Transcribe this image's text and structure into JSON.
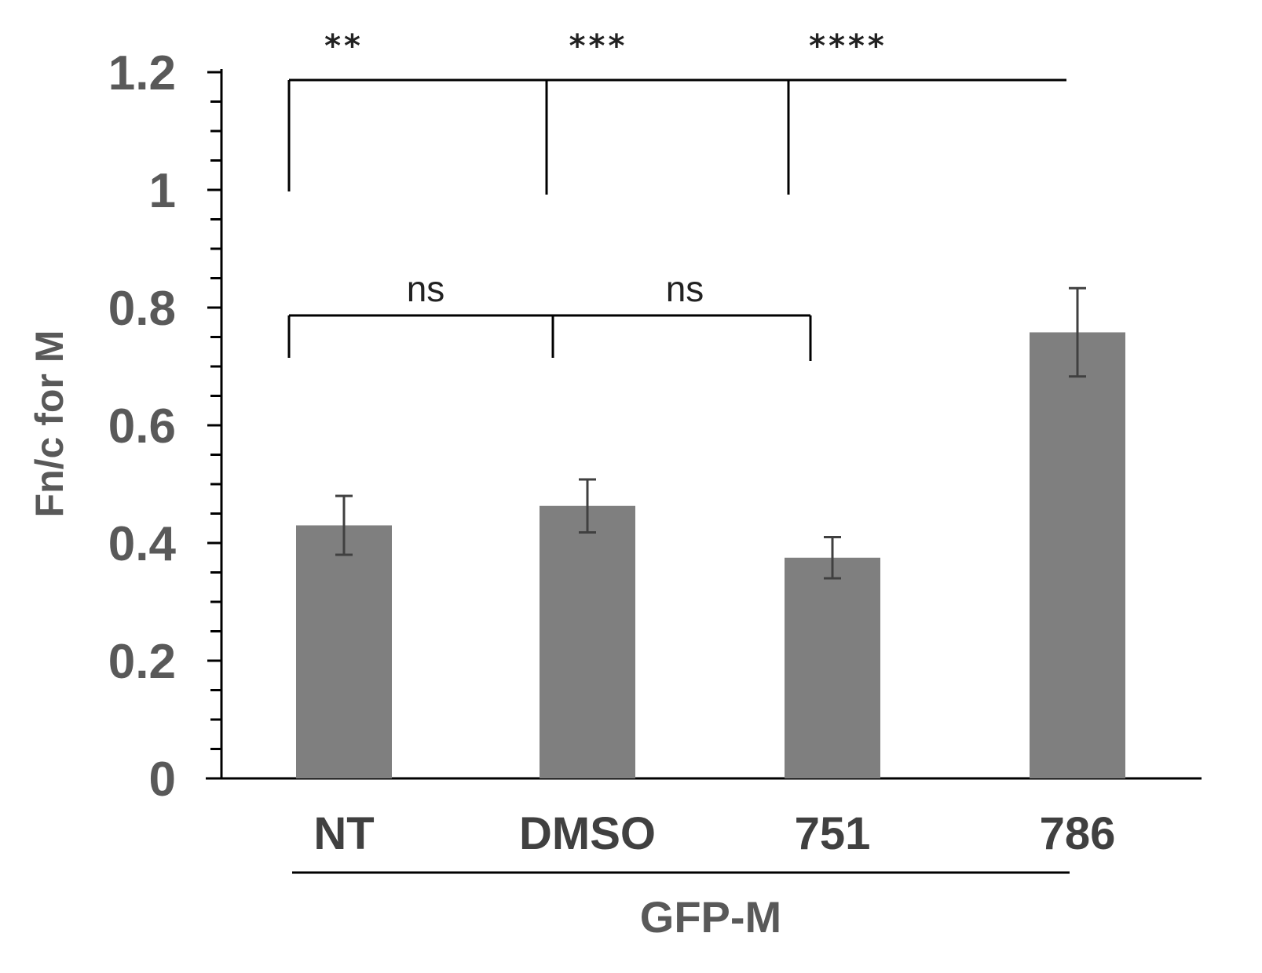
{
  "chart_data": {
    "type": "bar",
    "categories": [
      "NT",
      "DMSO",
      "751",
      "786"
    ],
    "values": [
      0.43,
      0.463,
      0.375,
      0.758
    ],
    "errors": [
      0.05,
      0.045,
      0.035,
      0.075
    ],
    "xlabel": "",
    "ylabel": "Fn/c for M",
    "ylim": [
      0,
      1.2
    ],
    "yticks": [
      "0",
      "0.2",
      "0.4",
      "0.6",
      "0.8",
      "1",
      "1.2"
    ],
    "group_label": "GFP-M",
    "bar_color": "#7f7f7f",
    "error_color": "#404040",
    "significance": [
      {
        "label": "**",
        "between": [
          "NT",
          "786"
        ]
      },
      {
        "label": "***",
        "between": [
          "DMSO",
          "786"
        ]
      },
      {
        "label": "****",
        "between": [
          "751",
          "786"
        ]
      },
      {
        "label": "ns",
        "between": [
          "NT",
          "DMSO"
        ]
      },
      {
        "label": "ns",
        "between": [
          "DMSO",
          "751"
        ]
      }
    ]
  }
}
